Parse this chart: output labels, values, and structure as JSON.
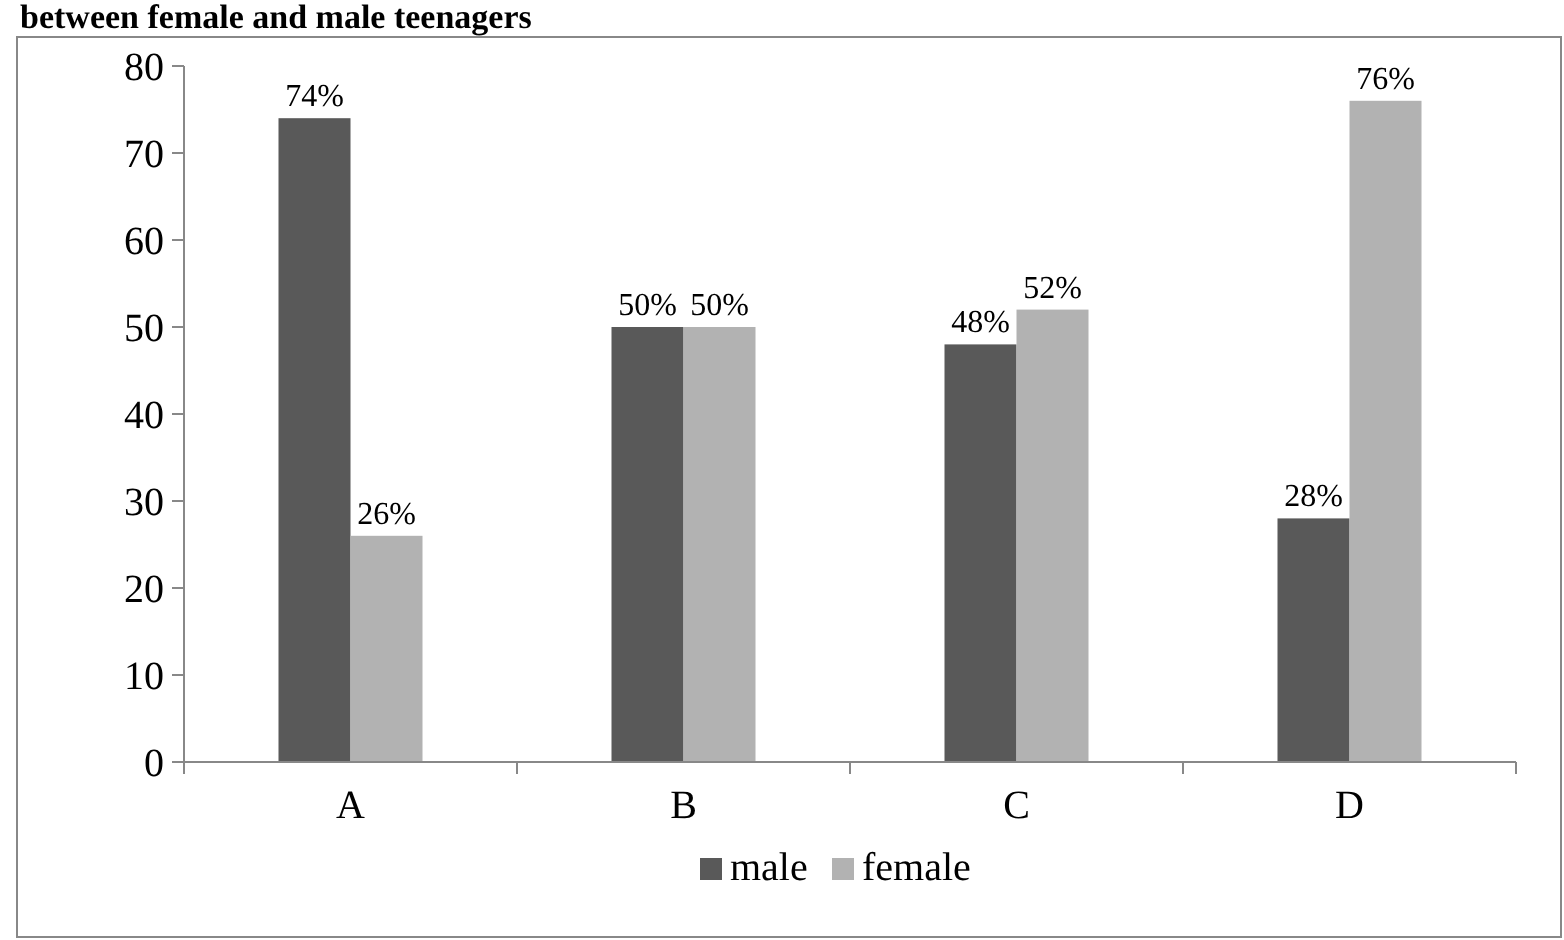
{
  "chart_data": {
    "type": "bar",
    "title": "between female and male teenagers",
    "categories": [
      "A",
      "B",
      "C",
      "D"
    ],
    "series": [
      {
        "name": "male",
        "color": "#595959",
        "values": [
          74,
          50,
          48,
          28
        ],
        "value_labels": [
          "74%",
          "50%",
          "48%",
          "28%"
        ]
      },
      {
        "name": "female",
        "color": "#b2b2b2",
        "values": [
          26,
          50,
          52,
          76
        ],
        "value_labels": [
          "26%",
          "50%",
          "52%",
          "76%"
        ]
      }
    ],
    "ylim": [
      0,
      80
    ],
    "yticks": [
      0,
      10,
      20,
      30,
      40,
      50,
      60,
      70,
      80
    ],
    "grid": false,
    "legend": "bottom"
  }
}
